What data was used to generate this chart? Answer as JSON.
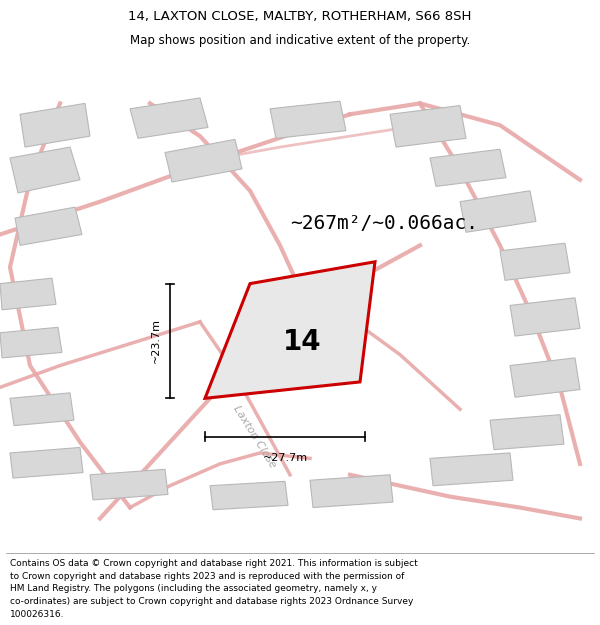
{
  "title_line1": "14, LAXTON CLOSE, MALTBY, ROTHERHAM, S66 8SH",
  "title_line2": "Map shows position and indicative extent of the property.",
  "area_text": "~267m²/~0.066ac.",
  "number_label": "14",
  "dim_height": "~23.7m",
  "dim_width": "~27.7m",
  "street_label": "Laxton Close",
  "footer_lines": [
    "Contains OS data © Crown copyright and database right 2021. This information is subject",
    "to Crown copyright and database rights 2023 and is reproduced with the permission of",
    "HM Land Registry. The polygons (including the associated geometry, namely x, y",
    "co-ordinates) are subject to Crown copyright and database rights 2023 Ordnance Survey",
    "100026316."
  ],
  "map_bg": "#f0f0f0",
  "plot_fill": "#e8e8e8",
  "plot_outline_color": "#cc0000",
  "road_color": "#e8a8a8",
  "building_color": "#d8d8d8",
  "building_outline": "#b8b8b8",
  "title_fontsize": 9.5,
  "subtitle_fontsize": 8.5,
  "area_fontsize": 14,
  "number_fontsize": 20,
  "dim_fontsize": 8,
  "footer_fontsize": 6.5,
  "street_fontsize": 8
}
